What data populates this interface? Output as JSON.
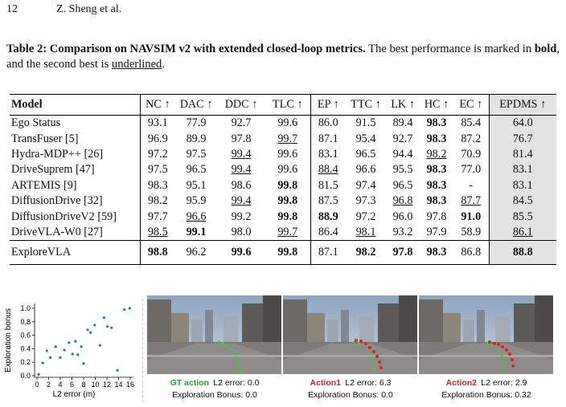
{
  "header": {
    "page": "12",
    "authors": "Z. Sheng et al."
  },
  "caption": {
    "label": "Table 2: Comparison on NAVSIM v2 with extended closed-loop metrics.",
    "text1": " The best performance is marked in ",
    "bold_word": "bold",
    "text2": ", and the second best is ",
    "underline_word": "underlined",
    "text3": "."
  },
  "table": {
    "columns": [
      "Model",
      "NC ↑",
      "DAC ↑",
      "DDC ↑",
      "TLC ↑",
      "EP ↑",
      "TTC ↑",
      "LK ↑",
      "HC ↑",
      "EC ↑",
      "EPDMS ↑"
    ],
    "rows": [
      {
        "cells": [
          "Ego Status",
          "93.1",
          "77.9",
          "92.7",
          "99.6",
          "86.0",
          "91.5",
          "89.4",
          "98.3",
          "85.4",
          "64.0"
        ],
        "bold": [
          8
        ],
        "underline": []
      },
      {
        "cells": [
          "TransFuser [5]",
          "96.9",
          "89.9",
          "97.8",
          "99.7",
          "87.1",
          "95.4",
          "92.7",
          "98.3",
          "87.2",
          "76.7"
        ],
        "bold": [
          8
        ],
        "underline": [
          4
        ]
      },
      {
        "cells": [
          "Hydra-MDP++ [26]",
          "97.2",
          "97.5",
          "99.4",
          "99.6",
          "83.1",
          "96.5",
          "94.4",
          "98.2",
          "70.9",
          "81.4"
        ],
        "bold": [],
        "underline": [
          3,
          8
        ]
      },
      {
        "cells": [
          "DriveSuprem [47]",
          "97.5",
          "96.5",
          "99.4",
          "99.6",
          "88.4",
          "96.6",
          "95.5",
          "98.3",
          "77.0",
          "83.1"
        ],
        "bold": [
          8
        ],
        "underline": [
          3,
          5
        ]
      },
      {
        "cells": [
          "ARTEMIS [9]",
          "98.3",
          "95.1",
          "98.6",
          "99.8",
          "81.5",
          "97.4",
          "96.5",
          "98.3",
          "-",
          "83.1"
        ],
        "bold": [
          4,
          8
        ],
        "underline": []
      },
      {
        "cells": [
          "DiffusionDrive [32]",
          "98.2",
          "95.9",
          "99.4",
          "99.8",
          "87.5",
          "97.3",
          "96.8",
          "98.3",
          "87.7",
          "84.5"
        ],
        "bold": [
          4,
          8
        ],
        "underline": [
          3,
          7,
          9
        ]
      },
      {
        "cells": [
          "DiffusionDriveV2 [59]",
          "97.7",
          "96.6",
          "99.2",
          "99.8",
          "88.9",
          "97.2",
          "96.0",
          "97.8",
          "91.0",
          "85.5"
        ],
        "bold": [
          4,
          5,
          9
        ],
        "underline": [
          2
        ]
      },
      {
        "cells": [
          "DriveVLA-W0 [27]",
          "98.5",
          "99.1",
          "98.0",
          "99.7",
          "86.4",
          "98.1",
          "93.2",
          "97.9",
          "58.9",
          "86.1"
        ],
        "bold": [
          2
        ],
        "underline": [
          1,
          4,
          6,
          10
        ]
      }
    ],
    "ours": {
      "cells": [
        "ExploreVLA",
        "98.8",
        "96.2",
        "99.6",
        "99.8",
        "87.1",
        "98.2",
        "97.8",
        "98.3",
        "86.8",
        "88.8"
      ],
      "bold": [
        1,
        3,
        4,
        6,
        7,
        8,
        10
      ],
      "underline": []
    }
  },
  "chart_data": {
    "type": "scatter",
    "xlabel": "L2 error (m)",
    "ylabel": "Exploration bonus",
    "color": "#1f77b4",
    "x": [
      0.3,
      1.0,
      1.7,
      2.3,
      3.2,
      4.0,
      4.7,
      5.5,
      6.1,
      6.6,
      7.0,
      7.6,
      8.0,
      8.7,
      9.2,
      9.9,
      10.8,
      11.5,
      12.1,
      12.8,
      13.8,
      15.0,
      15.9
    ],
    "values": [
      0.02,
      0.19,
      0.37,
      0.27,
      0.43,
      0.27,
      0.38,
      0.49,
      0.32,
      0.51,
      0.31,
      0.43,
      0.18,
      0.68,
      0.64,
      0.75,
      0.45,
      0.86,
      0.73,
      0.71,
      0.08,
      0.98,
      1.0
    ],
    "xlim": [
      0,
      16
    ],
    "ylim": [
      0,
      1
    ],
    "xticks": [
      0,
      2,
      4,
      6,
      8,
      10,
      12,
      14,
      16
    ],
    "yticks": [
      {
        "value": 0,
        "label": "0.0"
      },
      {
        "value": 0.2,
        "label": "0.2"
      },
      {
        "value": 0.4,
        "label": "0.4"
      },
      {
        "value": 0.6,
        "label": "0.6"
      },
      {
        "value": 0.8,
        "label": "0.8"
      },
      {
        "value": 1,
        "label": "1.0"
      }
    ]
  },
  "panels": [
    {
      "action": "GT action",
      "action_color": "#22a822",
      "l2": "L2 error: 0.0",
      "bonus": "Exploration Bonus: 0.0"
    },
    {
      "action": "Action1",
      "action_color": "#e02020",
      "l2": "L2 error: 6.3",
      "bonus": "Exploration Bonus: 0.0"
    },
    {
      "action": "Action2",
      "action_color": "#e02020",
      "l2": "L2 error: 2.9",
      "bonus": "Exploration Bonus: 0.32"
    }
  ]
}
